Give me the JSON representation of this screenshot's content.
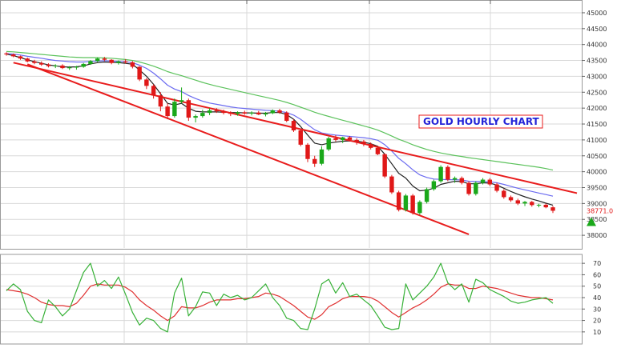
{
  "colors": {
    "bull": "#1aa81a",
    "bear": "#e01818",
    "ema_fast": "#222222",
    "ema_mid": "#6b6bf0",
    "ema_slow": "#5cc25c",
    "channel": "#e81c1c",
    "osc_fast": "#37b137",
    "osc_slow": "#e03030",
    "grid": "#d8d8d8",
    "last_price": "#e01818",
    "signal_arrow": "#1aa81a",
    "title": "#2424d8"
  },
  "chart_data": [
    {
      "type": "candlestick",
      "title": "GOLD HOURLY CHART",
      "ylim": [
        37600,
        45200
      ],
      "y_ticks": [
        38000,
        38500,
        39000,
        39500,
        40000,
        40500,
        41000,
        41500,
        42000,
        42500,
        43000,
        43500,
        44000,
        44500,
        45000
      ],
      "y_tick_labels": [
        "38000",
        "38500",
        "39000",
        "39500",
        "40000",
        "40500",
        "41000",
        "41500",
        "42000",
        "42500",
        "43000",
        "43500",
        "44000",
        "44500",
        "45000"
      ],
      "last_price": 38771,
      "last_price_label": "38771.0",
      "grid": true,
      "candles": [
        [
          43720,
          43760,
          43650,
          43690
        ],
        [
          43690,
          43720,
          43600,
          43630
        ],
        [
          43630,
          43650,
          43520,
          43560
        ],
        [
          43560,
          43590,
          43440,
          43470
        ],
        [
          43470,
          43520,
          43380,
          43420
        ],
        [
          43420,
          43470,
          43330,
          43370
        ],
        [
          43370,
          43410,
          43280,
          43320
        ],
        [
          43320,
          43380,
          43260,
          43340
        ],
        [
          43340,
          43380,
          43230,
          43260
        ],
        [
          43260,
          43320,
          43200,
          43280
        ],
        [
          43280,
          43330,
          43210,
          43300
        ],
        [
          43300,
          43420,
          43270,
          43390
        ],
        [
          43390,
          43510,
          43360,
          43480
        ],
        [
          43480,
          43590,
          43450,
          43560
        ],
        [
          43560,
          43610,
          43480,
          43520
        ],
        [
          43520,
          43540,
          43380,
          43420
        ],
        [
          43420,
          43500,
          43370,
          43470
        ],
        [
          43470,
          43540,
          43400,
          43440
        ],
        [
          43440,
          43480,
          43250,
          43300
        ],
        [
          43300,
          43320,
          42850,
          42900
        ],
        [
          42900,
          42950,
          42600,
          42700
        ],
        [
          42700,
          42750,
          42300,
          42400
        ],
        [
          42400,
          42500,
          41900,
          42050
        ],
        [
          42050,
          42150,
          41650,
          41750
        ],
        [
          41750,
          42300,
          41700,
          42200
        ],
        [
          42200,
          42650,
          42150,
          42250
        ],
        [
          42250,
          42300,
          41600,
          41700
        ],
        [
          41700,
          41800,
          41550,
          41750
        ],
        [
          41750,
          41950,
          41700,
          41850
        ],
        [
          41850,
          42000,
          41780,
          41930
        ],
        [
          41930,
          42000,
          41850,
          41900
        ],
        [
          41900,
          41950,
          41800,
          41850
        ],
        [
          41850,
          41900,
          41750,
          41820
        ],
        [
          41820,
          41900,
          41760,
          41870
        ],
        [
          41870,
          41920,
          41790,
          41830
        ],
        [
          41830,
          41900,
          41770,
          41860
        ],
        [
          41860,
          41910,
          41780,
          41800
        ],
        [
          41800,
          41880,
          41740,
          41840
        ],
        [
          41840,
          41960,
          41810,
          41930
        ],
        [
          41930,
          41980,
          41820,
          41860
        ],
        [
          41860,
          41900,
          41560,
          41600
        ],
        [
          41600,
          41650,
          41250,
          41300
        ],
        [
          41300,
          41350,
          40800,
          40850
        ],
        [
          40850,
          40900,
          40300,
          40400
        ],
        [
          40400,
          40500,
          40150,
          40250
        ],
        [
          40250,
          40800,
          40200,
          40700
        ],
        [
          40700,
          41100,
          40650,
          41050
        ],
        [
          41050,
          41150,
          40950,
          41000
        ],
        [
          41000,
          41100,
          40900,
          41080
        ],
        [
          41080,
          41120,
          40950,
          41000
        ],
        [
          41000,
          41050,
          40850,
          40950
        ],
        [
          40950,
          41000,
          40800,
          40870
        ],
        [
          40870,
          40920,
          40700,
          40750
        ],
        [
          40750,
          40800,
          40520,
          40550
        ],
        [
          40550,
          40580,
          39800,
          39850
        ],
        [
          39850,
          39900,
          39300,
          39350
        ],
        [
          39350,
          39400,
          38750,
          38800
        ],
        [
          38800,
          39300,
          38750,
          39250
        ],
        [
          39250,
          39300,
          38650,
          38700
        ],
        [
          38700,
          39100,
          38650,
          39050
        ],
        [
          39050,
          39500,
          39000,
          39450
        ],
        [
          39450,
          39750,
          39400,
          39700
        ],
        [
          39700,
          40200,
          39650,
          40150
        ],
        [
          40150,
          40200,
          39700,
          39750
        ],
        [
          39750,
          39850,
          39650,
          39800
        ],
        [
          39800,
          39850,
          39600,
          39650
        ],
        [
          39650,
          39700,
          39250,
          39300
        ],
        [
          39300,
          39700,
          39250,
          39650
        ],
        [
          39650,
          39800,
          39600,
          39750
        ],
        [
          39750,
          39800,
          39550,
          39600
        ],
        [
          39600,
          39650,
          39350,
          39400
        ],
        [
          39400,
          39450,
          39150,
          39200
        ],
        [
          39200,
          39250,
          39050,
          39100
        ],
        [
          39100,
          39150,
          38950,
          39000
        ],
        [
          39000,
          39080,
          38920,
          39050
        ],
        [
          39050,
          39080,
          38900,
          38950
        ],
        [
          38950,
          38990,
          38880,
          38960
        ],
        [
          38960,
          39000,
          38850,
          38880
        ],
        [
          38880,
          38920,
          38700,
          38771
        ]
      ],
      "ema_fast": [
        43700,
        43650,
        43590,
        43520,
        43460,
        43410,
        43360,
        43330,
        43300,
        43290,
        43300,
        43330,
        43390,
        43430,
        43450,
        43440,
        43430,
        43410,
        43380,
        43200,
        43000,
        42750,
        42450,
        42150,
        42100,
        42150,
        42000,
        41900,
        41880,
        41880,
        41880,
        41870,
        41860,
        41860,
        41850,
        41850,
        41840,
        41840,
        41860,
        41860,
        41800,
        41650,
        41420,
        41150,
        40900,
        40850,
        40900,
        40930,
        40960,
        40970,
        40960,
        40930,
        40880,
        40800,
        40550,
        40250,
        39950,
        39800,
        39550,
        39400,
        39420,
        39480,
        39600,
        39650,
        39700,
        39690,
        39620,
        39620,
        39650,
        39640,
        39580,
        39480,
        39380,
        39290,
        39210,
        39140,
        39080,
        39010,
        38950
      ],
      "ema_mid": [
        43720,
        43700,
        43670,
        43630,
        43600,
        43570,
        43530,
        43500,
        43480,
        43460,
        43450,
        43450,
        43470,
        43480,
        43490,
        43480,
        43470,
        43460,
        43430,
        43350,
        43250,
        43100,
        42920,
        42720,
        42600,
        42520,
        42400,
        42300,
        42220,
        42160,
        42120,
        42080,
        42040,
        42010,
        41990,
        41970,
        41950,
        41930,
        41920,
        41900,
        41860,
        41780,
        41650,
        41480,
        41320,
        41220,
        41180,
        41150,
        41130,
        41110,
        41090,
        41070,
        41040,
        40990,
        40850,
        40650,
        40420,
        40250,
        40060,
        39900,
        39820,
        39770,
        39760,
        39750,
        39750,
        39740,
        39700,
        39690,
        39690,
        39680,
        39650,
        39600,
        39540,
        39480,
        39430,
        39380,
        39330,
        39280,
        39230
      ],
      "ema_slow": [
        43780,
        43770,
        43750,
        43730,
        43710,
        43690,
        43670,
        43650,
        43630,
        43610,
        43600,
        43590,
        43590,
        43590,
        43580,
        43570,
        43550,
        43530,
        43500,
        43450,
        43390,
        43320,
        43240,
        43150,
        43080,
        43020,
        42950,
        42880,
        42810,
        42750,
        42690,
        42640,
        42590,
        42540,
        42490,
        42440,
        42390,
        42340,
        42290,
        42240,
        42180,
        42110,
        42030,
        41950,
        41870,
        41800,
        41740,
        41680,
        41620,
        41560,
        41500,
        41440,
        41380,
        41310,
        41220,
        41120,
        41020,
        40940,
        40850,
        40770,
        40700,
        40640,
        40590,
        40550,
        40510,
        40480,
        40440,
        40410,
        40380,
        40350,
        40320,
        40290,
        40260,
        40230,
        40200,
        40170,
        40140,
        40100,
        40050
      ],
      "channel_upper": [
        [
          0,
          43350
        ],
        [
          1,
          43430
        ],
        [
          78,
          39500
        ]
      ],
      "channel_lower": [
        [
          1,
          43180
        ],
        [
          3,
          43380
        ],
        [
          66,
          38030
        ]
      ]
    },
    {
      "type": "line",
      "ylim": [
        5,
        75
      ],
      "y_ticks": [
        10,
        20,
        30,
        40,
        50,
        60,
        70
      ],
      "y_tick_labels": [
        "10",
        "20",
        "30",
        "40",
        "50",
        "60",
        "70"
      ],
      "series_fast": [
        46,
        52,
        47,
        28,
        20,
        18,
        38,
        32,
        24,
        30,
        46,
        62,
        70,
        50,
        55,
        48,
        58,
        43,
        27,
        16,
        22,
        20,
        13,
        10,
        44,
        57,
        24,
        32,
        45,
        44,
        33,
        43,
        40,
        42,
        38,
        40,
        46,
        52,
        40,
        33,
        22,
        20,
        13,
        12,
        30,
        52,
        56,
        44,
        53,
        41,
        43,
        38,
        33,
        24,
        14,
        12,
        13,
        52,
        38,
        44,
        50,
        58,
        70,
        53,
        47,
        52,
        36,
        56,
        53,
        47,
        44,
        41,
        37,
        35,
        36,
        38,
        39,
        40,
        35
      ],
      "series_slow": [
        47,
        46,
        45,
        43,
        40,
        36,
        34,
        33,
        33,
        32,
        35,
        42,
        50,
        52,
        51,
        51,
        51,
        49,
        45,
        38,
        33,
        29,
        24,
        20,
        24,
        32,
        31,
        31,
        33,
        36,
        38,
        38,
        38,
        39,
        39,
        40,
        41,
        44,
        43,
        41,
        37,
        33,
        28,
        23,
        21,
        25,
        32,
        35,
        39,
        41,
        41,
        41,
        40,
        37,
        32,
        27,
        23,
        27,
        31,
        34,
        38,
        43,
        49,
        52,
        51,
        51,
        48,
        48,
        50,
        49,
        48,
        46,
        44,
        42,
        41,
        40,
        40,
        39,
        38
      ]
    }
  ]
}
